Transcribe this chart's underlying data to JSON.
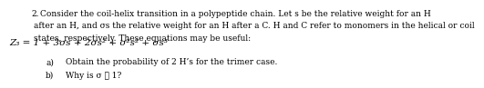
{
  "problem_number": "2.",
  "intro_line1": "Consider the coil-helix transition in a polypeptide chain. Let s be the relative weight for an H",
  "intro_line2": "after an H, and σs the relative weight for an H after a C. H and C refer to monomers in the helical or coil",
  "intro_line3": "states, respectively. These equations may be useful:",
  "equation": "Z₃ = 1 + 3σs + 2σs² + σ²s² + σs³",
  "part_a_label": "a)",
  "part_a_text": "Obtain the probability of 2 H’s for the trimer case.",
  "part_b_label": "b)",
  "part_b_text": "Why is σ ≪ 1?",
  "bg_color": "#ffffff",
  "text_color": "#000000",
  "font_size_main": 6.5,
  "font_size_eq": 7.5,
  "font_size_parts": 6.5
}
